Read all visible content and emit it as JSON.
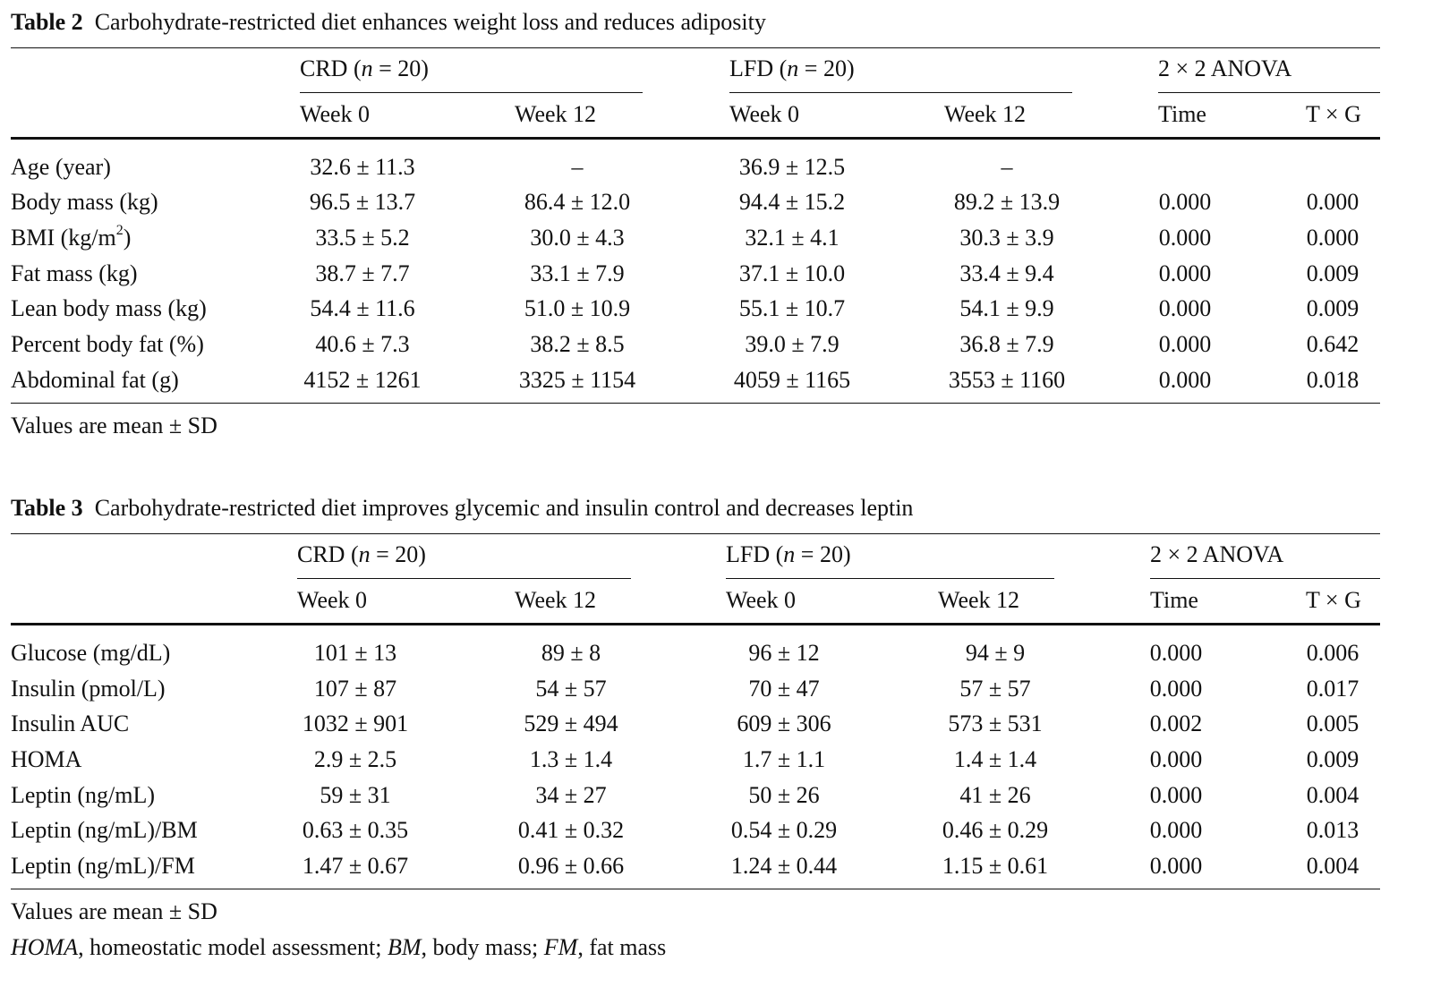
{
  "table2": {
    "label": "Table 2",
    "title": "Carbohydrate-restricted diet enhances weight loss and reduces adiposity",
    "groups": {
      "crd": {
        "name": "CRD",
        "n_label": "n",
        "n_rest": "= 20)"
      },
      "lfd": {
        "name": "LFD",
        "n_label": "n",
        "n_rest": "= 20)"
      },
      "anova": "2 × 2 ANOVA"
    },
    "subheaders": [
      "Week 0",
      "Week 12",
      "Week 0",
      "Week 12",
      "Time",
      "T × G"
    ],
    "rows": [
      {
        "label": "Age (year)",
        "cells": [
          "32.6 ± 11.3",
          "–",
          "36.9 ± 12.5",
          "–",
          "",
          ""
        ]
      },
      {
        "label": "Body mass (kg)",
        "cells": [
          "96.5 ± 13.7",
          "86.4 ± 12.0",
          "94.4 ± 15.2",
          "89.2 ± 13.9",
          "0.000",
          "0.000"
        ]
      },
      {
        "label_pre": "BMI (kg/m",
        "label_sup": "2",
        "label_post": ")",
        "cells": [
          "33.5 ± 5.2",
          "30.0 ± 4.3",
          "32.1 ± 4.1",
          "30.3 ± 3.9",
          "0.000",
          "0.000"
        ]
      },
      {
        "label": "Fat mass (kg)",
        "cells": [
          "38.7 ± 7.7",
          "33.1 ± 7.9",
          "37.1 ± 10.0",
          "33.4 ± 9.4",
          "0.000",
          "0.009"
        ]
      },
      {
        "label": "Lean body mass (kg)",
        "cells": [
          "54.4 ± 11.6",
          "51.0 ± 10.9",
          "55.1 ± 10.7",
          "54.1 ± 9.9",
          "0.000",
          "0.009"
        ]
      },
      {
        "label": "Percent body fat (%)",
        "cells": [
          "40.6 ± 7.3",
          "38.2 ± 8.5",
          "39.0 ± 7.9",
          "36.8 ± 7.9",
          "0.000",
          "0.642"
        ]
      },
      {
        "label": "Abdominal fat (g)",
        "cells": [
          "4152 ± 1261",
          "3325 ± 1154",
          "4059 ± 1165",
          "3553 ± 1160",
          "0.000",
          "0.018"
        ]
      }
    ],
    "footnote": "Values are mean ± SD"
  },
  "table3": {
    "label": "Table 3",
    "title": "Carbohydrate-restricted diet improves glycemic and insulin control and decreases leptin",
    "groups": {
      "crd": {
        "name": "CRD",
        "n_label": "n",
        "n_rest": "= 20)"
      },
      "lfd": {
        "name": "LFD",
        "n_label": "n",
        "n_rest": "= 20)"
      },
      "anova": "2 × 2 ANOVA"
    },
    "subheaders": [
      "Week 0",
      "Week 12",
      "Week 0",
      "Week 12",
      "Time",
      "T × G"
    ],
    "rows": [
      {
        "label": "Glucose (mg/dL)",
        "cells": [
          "101 ± 13",
          "89 ± 8",
          "96 ± 12",
          "94 ± 9",
          "0.000",
          "0.006"
        ]
      },
      {
        "label": "Insulin (pmol/L)",
        "cells": [
          "107 ± 87",
          "54 ± 57",
          "70 ± 47",
          "57 ± 57",
          "0.000",
          "0.017"
        ]
      },
      {
        "label": "Insulin AUC",
        "cells": [
          "1032 ± 901",
          "529 ± 494",
          "609 ± 306",
          "573 ± 531",
          "0.002",
          "0.005"
        ]
      },
      {
        "label": "HOMA",
        "cells": [
          "2.9 ± 2.5",
          "1.3 ± 1.4",
          "1.7 ± 1.1",
          "1.4 ± 1.4",
          "0.000",
          "0.009"
        ]
      },
      {
        "label": "Leptin (ng/mL)",
        "cells": [
          "59 ± 31",
          "34 ± 27",
          "50 ± 26",
          "41 ± 26",
          "0.000",
          "0.004"
        ]
      },
      {
        "label": "Leptin (ng/mL)/BM",
        "cells": [
          "0.63 ± 0.35",
          "0.41 ± 0.32",
          "0.54 ± 0.29",
          "0.46 ± 0.29",
          "0.000",
          "0.013"
        ]
      },
      {
        "label": "Leptin (ng/mL)/FM",
        "cells": [
          "1.47 ± 0.67",
          "0.96 ± 0.66",
          "1.24 ± 0.44",
          "1.15 ± 0.61",
          "0.000",
          "0.004"
        ]
      }
    ],
    "footnote": "Values are mean ± SD",
    "abbrev": {
      "homa_term": "HOMA",
      "homa_def": ", homeostatic model assessment; ",
      "bm_term": "BM",
      "bm_def": ", body mass; ",
      "fm_term": "FM",
      "fm_def": ", fat mass"
    }
  }
}
